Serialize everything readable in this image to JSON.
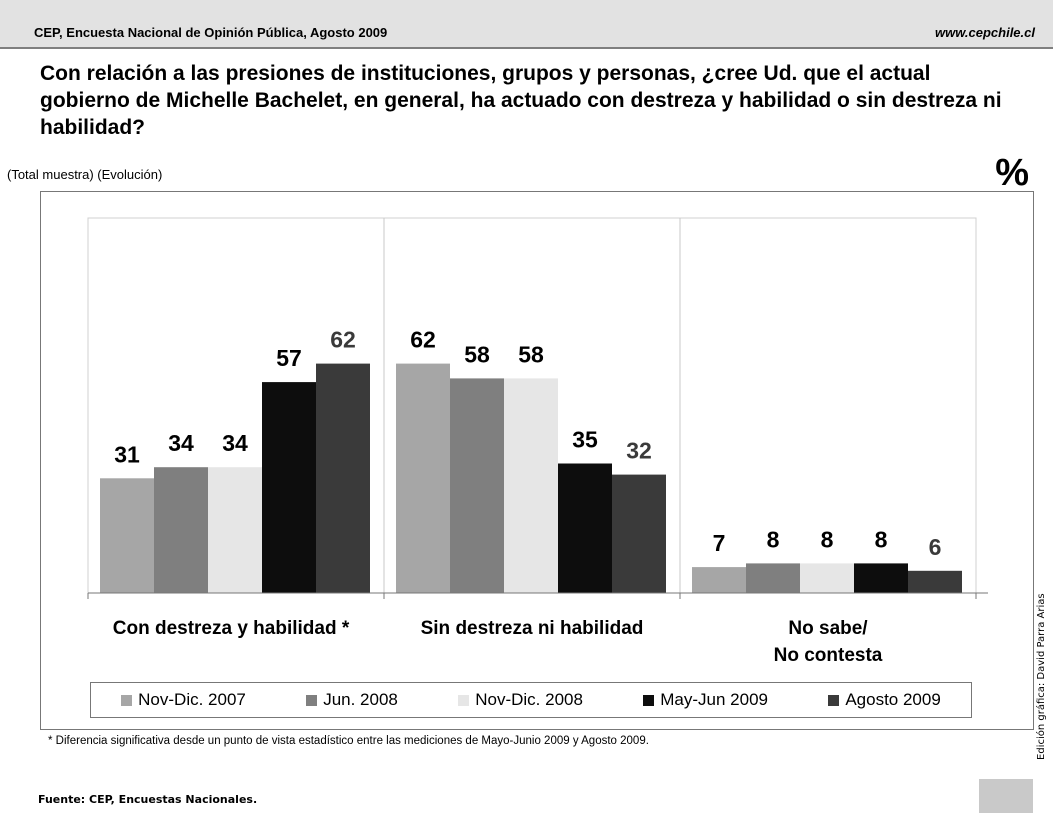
{
  "header": {
    "left": "CEP, Encuesta Nacional de Opinión Pública, Agosto 2009",
    "right": "www.cepchile.cl"
  },
  "question": "Con relación a las presiones de instituciones, grupos y personas, ¿cree Ud. que el actual gobierno de Michelle Bachelet, en general, ha actuado con destreza y habilidad o sin destreza ni habilidad?",
  "subtitle": "(Total muestra) (Evolución)",
  "unit": "%",
  "footnote": "* Diferencia significativa desde un punto de vista estadístico entre las mediciones de Mayo-Junio 2009 y Agosto 2009.",
  "source": "Fuente: CEP, Encuestas Nacionales.",
  "credit": "Edición gráfica: David Parra Arias",
  "chart_data": {
    "type": "bar",
    "title": "",
    "xlabel": "",
    "ylabel": "",
    "ylim": [
      0,
      70
    ],
    "grid": false,
    "legend_position": "bottom",
    "categories": [
      "Con destreza y habilidad *",
      "Sin destreza ni habilidad",
      "No sabe/\nNo contesta"
    ],
    "series": [
      {
        "name": "Nov-Dic. 2007",
        "color": "#a6a6a6",
        "label_color": "#000000",
        "values": [
          31,
          62,
          7
        ]
      },
      {
        "name": "Jun. 2008",
        "color": "#7f7f7f",
        "label_color": "#000000",
        "values": [
          34,
          58,
          8
        ]
      },
      {
        "name": "Nov-Dic. 2008",
        "color": "#e6e6e6",
        "label_color": "#000000",
        "values": [
          34,
          58,
          8
        ]
      },
      {
        "name": "May-Jun 2009",
        "color": "#0d0d0d",
        "label_color": "#000000",
        "values": [
          57,
          35,
          8
        ]
      },
      {
        "name": "Agosto 2009",
        "color": "#3a3a3a",
        "label_color": "#3a3a3a",
        "values": [
          62,
          32,
          6
        ]
      }
    ]
  }
}
